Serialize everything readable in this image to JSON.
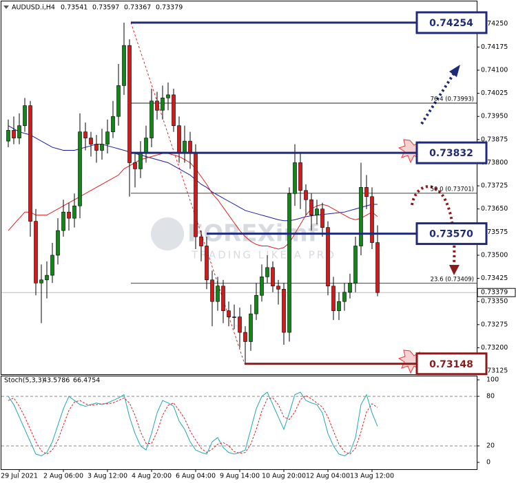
{
  "chart_data": [
    {
      "type": "candlestick",
      "title": "AUDUSD.i,H4",
      "watermark": [
        "FOREXimf",
        "TRADING LIKE A PRO"
      ],
      "categories": [
        null,
        null,
        "29 Jul 2021",
        null,
        null,
        null,
        null,
        null,
        null,
        null,
        "2 Aug 06:00",
        null,
        null,
        null,
        null,
        null,
        null,
        null,
        "3 Aug 12:00",
        null,
        null,
        null,
        null,
        null,
        null,
        null,
        "4 Aug 20:00",
        null,
        null,
        null,
        null,
        null,
        null,
        null,
        "6 Aug 04:00",
        null,
        null,
        null,
        null,
        null,
        null,
        null,
        "9 Aug 14:00",
        null,
        null,
        null,
        null,
        null,
        null,
        null,
        "10 Aug 20:00",
        null,
        null,
        null,
        null,
        null,
        null,
        null,
        "12 Aug 04:00",
        null,
        null,
        null,
        null,
        null,
        null,
        null,
        "13 Aug 12:00",
        null
      ],
      "open": [
        0.7387,
        0.73905,
        0.7388,
        0.7392,
        0.73985,
        0.7361,
        0.7341,
        0.7342,
        0.73435,
        0.735,
        0.7358,
        0.7364,
        0.7362,
        0.7366,
        0.739,
        0.7388,
        0.7386,
        0.7384,
        0.7386,
        0.739,
        0.7395,
        0.7405,
        0.7418,
        0.738,
        0.7378,
        0.7383,
        0.7388,
        0.74,
        0.7397,
        0.7401,
        0.7402,
        0.7392,
        0.7383,
        0.7387,
        0.7383,
        0.7356,
        0.7353,
        0.7342,
        0.7335,
        0.734,
        0.7332,
        0.733,
        0.733,
        0.7325,
        0.7322,
        0.7331,
        0.7337,
        0.7343,
        0.7346,
        0.734,
        0.7339,
        0.7325,
        0.737,
        0.738,
        0.7371,
        0.7368,
        0.7363,
        0.7365,
        0.7359,
        0.734,
        0.7332,
        0.7335,
        0.7338,
        0.7341,
        0.7353,
        0.7372,
        0.7369,
        0.73541
      ],
      "high": [
        0.7394,
        0.7395,
        0.7396,
        0.7401,
        0.74,
        0.7365,
        0.7347,
        0.7348,
        0.7354,
        0.7362,
        0.7368,
        0.7367,
        0.737,
        0.7396,
        0.7393,
        0.739,
        0.7389,
        0.7391,
        0.7394,
        0.74,
        0.7412,
        0.74254,
        0.742,
        0.7383,
        0.7387,
        0.7392,
        0.7404,
        0.7403,
        0.7405,
        0.7406,
        0.7404,
        0.7395,
        0.7392,
        0.739,
        0.7386,
        0.7358,
        0.7356,
        0.7345,
        0.7343,
        0.7342,
        0.7335,
        0.7334,
        0.7333,
        0.7327,
        0.7334,
        0.7341,
        0.7347,
        0.735,
        0.7348,
        0.7342,
        0.7341,
        0.7372,
        0.7386,
        0.7383,
        0.7373,
        0.737,
        0.7368,
        0.7367,
        0.7361,
        0.7343,
        0.7338,
        0.7341,
        0.7344,
        0.7356,
        0.738,
        0.7376,
        0.7372,
        0.73597
      ],
      "low": [
        0.7385,
        0.7386,
        0.7386,
        0.739,
        0.7356,
        0.7337,
        0.7328,
        0.7336,
        0.7341,
        0.7347,
        0.7356,
        0.7358,
        0.7359,
        0.7362,
        0.7384,
        0.7382,
        0.738,
        0.7381,
        0.7383,
        0.7388,
        0.7392,
        0.7402,
        0.7369,
        0.7372,
        0.7375,
        0.738,
        0.7385,
        0.7394,
        0.7394,
        0.7397,
        0.739,
        0.738,
        0.738,
        0.7378,
        0.7352,
        0.7348,
        0.7339,
        0.7327,
        0.7332,
        0.7328,
        0.7327,
        0.7326,
        0.732,
        0.73148,
        0.7319,
        0.7329,
        0.7335,
        0.7341,
        0.7338,
        0.7334,
        0.7321,
        0.7322,
        0.7366,
        0.7365,
        0.7363,
        0.7358,
        0.736,
        0.7356,
        0.7337,
        0.7329,
        0.7329,
        0.7332,
        0.7336,
        0.7338,
        0.735,
        0.7365,
        0.7352,
        0.73367
      ],
      "close": [
        0.73905,
        0.7388,
        0.7392,
        0.73985,
        0.7361,
        0.7341,
        0.7342,
        0.73435,
        0.735,
        0.7358,
        0.7364,
        0.7362,
        0.7366,
        0.739,
        0.7388,
        0.7386,
        0.7384,
        0.7386,
        0.739,
        0.7395,
        0.7405,
        0.7418,
        0.738,
        0.7378,
        0.7383,
        0.7388,
        0.74,
        0.7397,
        0.7401,
        0.7402,
        0.7392,
        0.7383,
        0.7387,
        0.7383,
        0.7356,
        0.7353,
        0.7342,
        0.7335,
        0.734,
        0.7332,
        0.733,
        0.733,
        0.7325,
        0.7322,
        0.7331,
        0.7337,
        0.7343,
        0.7346,
        0.734,
        0.7339,
        0.7325,
        0.737,
        0.738,
        0.7371,
        0.7368,
        0.7363,
        0.7365,
        0.7359,
        0.734,
        0.7332,
        0.7335,
        0.7338,
        0.7341,
        0.7353,
        0.7372,
        0.7369,
        0.73541,
        0.73379
      ],
      "up_color": "#13861a",
      "down_color": "#d11b1b",
      "series": [
        {
          "color": "#1c1ca8",
          "values": [
            0.7392,
            0.7391,
            0.739,
            0.73895,
            0.7389,
            0.7388,
            0.7387,
            0.7386,
            0.7385,
            0.73845,
            0.7384,
            0.7384,
            0.7384,
            0.73845,
            0.7385,
            0.73855,
            0.7386,
            0.7386,
            0.73855,
            0.7385,
            0.73845,
            0.7384,
            0.73835,
            0.7383,
            0.73825,
            0.7382,
            0.73815,
            0.7381,
            0.73805,
            0.738,
            0.7379,
            0.7378,
            0.7377,
            0.7376,
            0.73745,
            0.7373,
            0.7372,
            0.73705,
            0.73695,
            0.73685,
            0.73675,
            0.73665,
            0.73655,
            0.73645,
            0.7364,
            0.73635,
            0.7363,
            0.73625,
            0.7362,
            0.73615,
            0.73612,
            0.73612,
            0.73615,
            0.7362,
            0.73625,
            0.73628,
            0.7363,
            0.73632,
            0.73634,
            0.73636,
            0.73638,
            0.7364,
            0.73645,
            0.7365,
            0.73655,
            0.7366,
            0.73665,
            0.73665
          ]
        },
        {
          "color": "#e02020",
          "values": [
            0.7358,
            0.736,
            0.7362,
            0.7364,
            0.7364,
            0.7363,
            0.7363,
            0.7363,
            0.7364,
            0.7365,
            0.7366,
            0.7367,
            0.7368,
            0.7369,
            0.737,
            0.7371,
            0.7372,
            0.7373,
            0.7374,
            0.7375,
            0.7376,
            0.7378,
            0.7379,
            0.738,
            0.7381,
            0.73815,
            0.7382,
            0.73825,
            0.7383,
            0.7383,
            0.73825,
            0.7382,
            0.7381,
            0.738,
            0.7378,
            0.73755,
            0.7373,
            0.737,
            0.7368,
            0.73655,
            0.7363,
            0.73605,
            0.7358,
            0.7356,
            0.73545,
            0.73535,
            0.7353,
            0.7353,
            0.73525,
            0.7352,
            0.73525,
            0.7354,
            0.7357,
            0.736,
            0.7363,
            0.7365,
            0.7366,
            0.73665,
            0.7366,
            0.7365,
            0.7364,
            0.7363,
            0.7362,
            0.73615,
            0.7362,
            0.7363,
            0.7364,
            0.73625
          ]
        }
      ],
      "fib_levels": [
        {
          "value": 0.73993,
          "label": "76.4 (0.73993)"
        },
        {
          "value": 0.73701,
          "label": "50.0 (0.73701)"
        },
        {
          "value": 0.73409,
          "label": "23.6 (0.73409)"
        }
      ],
      "price_boxes": [
        0.74254,
        0.73832,
        {
          "value": 0.7357,
          "label": "0.73570"
        },
        0.73148
      ],
      "box_colors": [
        "#1f2a7a",
        "#1f2a7a",
        "#1f2a7a",
        "#8b1a1a"
      ],
      "ylim": [
        0.73114,
        0.74323
      ],
      "yticks": [
        {
          "value": 0.7425,
          "label": "0.74250"
        },
        0.74175,
        {
          "value": 0.741,
          "label": "0.74100"
        },
        0.74025,
        {
          "value": 0.7395,
          "label": "0.73950"
        },
        0.73875,
        {
          "value": 0.738,
          "label": "0.73800"
        },
        0.73725,
        {
          "value": 0.7365,
          "label": "0.73650"
        },
        0.73575,
        {
          "value": 0.735,
          "label": "0.73500"
        },
        0.73425,
        {
          "value": 0.7335,
          "label": "0.73350"
        },
        0.73275,
        {
          "value": 0.732,
          "label": "0.73200"
        },
        0.73125
      ]
    },
    {
      "type": "line",
      "title": "Stoch(5,3,3)",
      "series": [
        {
          "color": "#20a8b0",
          "dashed": false,
          "values": [
            80,
            70,
            55,
            40,
            25,
            10,
            8,
            12,
            25,
            45,
            65,
            80,
            75,
            70,
            68,
            70,
            72,
            70,
            72,
            75,
            78,
            82,
            55,
            35,
            20,
            15,
            35,
            60,
            75,
            72,
            68,
            50,
            40,
            25,
            15,
            12,
            10,
            25,
            30,
            18,
            12,
            10,
            12,
            15,
            40,
            65,
            80,
            85,
            70,
            55,
            40,
            60,
            82,
            85,
            75,
            72,
            70,
            60,
            35,
            20,
            10,
            8,
            12,
            30,
            70,
            82,
            60,
            43.5786
          ]
        },
        {
          "color": "#e02020",
          "dashed": true,
          "values": [
            75,
            78,
            68,
            55,
            40,
            25,
            14,
            10,
            15,
            27,
            45,
            63,
            73,
            75,
            71,
            69,
            70,
            71,
            71,
            72,
            75,
            78,
            72,
            57,
            37,
            23,
            23,
            37,
            57,
            69,
            72,
            63,
            53,
            38,
            27,
            17,
            12,
            16,
            22,
            24,
            20,
            13,
            11,
            12,
            22,
            40,
            62,
            77,
            78,
            70,
            55,
            52,
            61,
            76,
            81,
            77,
            72,
            67,
            55,
            38,
            22,
            13,
            10,
            17,
            37,
            61,
            71,
            66.4754
          ]
        }
      ],
      "levels": [
        80,
        20
      ],
      "ylim": [
        -8.3,
        104.2
      ],
      "yticks": [
        100,
        80,
        20,
        0
      ]
    }
  ]
}
